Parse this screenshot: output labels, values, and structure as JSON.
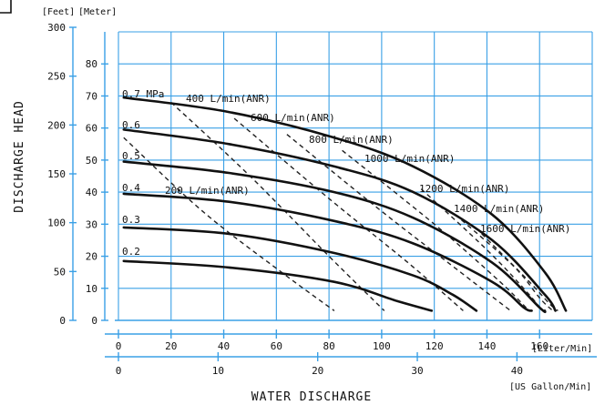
{
  "chart_data": {
    "type": "line",
    "title": "",
    "xlabel": "WATER DISCHARGE",
    "ylabel": "DISCHARGE HEAD",
    "x_unit_primary": "[Liter/Min]",
    "x_unit_secondary": "[US Gallon/Min]",
    "y_unit_feet": "[Feet]",
    "y_unit_meter": "[Meter]",
    "xlim": [
      0,
      180
    ],
    "ylim_meter": [
      0,
      90
    ],
    "grid": true,
    "x_ticks_lpm": [
      "0",
      "20",
      "40",
      "60",
      "80",
      "100",
      "120",
      "140",
      "160"
    ],
    "x_ticks_gpm": [
      "0",
      "10",
      "20",
      "30",
      "40"
    ],
    "y_ticks_meter": [
      "0",
      "10",
      "20",
      "30",
      "40",
      "50",
      "60",
      "70",
      "80"
    ],
    "y_ticks_feet": [
      "0",
      "50",
      "100",
      "150",
      "200",
      "250",
      "300"
    ],
    "series": [
      {
        "name": "0.7 MPa",
        "x": [
          0,
          40,
          80,
          110,
          140,
          160,
          168
        ],
        "y": [
          69.5,
          65,
          57,
          48,
          33,
          15,
          3
        ]
      },
      {
        "name": "0.6",
        "x": [
          0,
          40,
          80,
          110,
          140,
          160,
          164
        ],
        "y": [
          59.5,
          55,
          48,
          40,
          25,
          8,
          3
        ]
      },
      {
        "name": "0.5",
        "x": [
          0,
          40,
          80,
          110,
          140,
          158,
          160
        ],
        "y": [
          49.5,
          46,
          40,
          32,
          18,
          4,
          3
        ]
      },
      {
        "name": "0.4",
        "x": [
          0,
          40,
          80,
          110,
          140,
          152,
          155
        ],
        "y": [
          39.5,
          37,
          31,
          24,
          12,
          4,
          3
        ]
      },
      {
        "name": "0.3",
        "x": [
          0,
          40,
          80,
          110,
          125,
          134
        ],
        "y": [
          29,
          27,
          21,
          14,
          8,
          3
        ]
      },
      {
        "name": "0.2",
        "x": [
          0,
          40,
          80,
          104,
          117
        ],
        "y": [
          18.5,
          16.5,
          12,
          6,
          3
        ]
      }
    ],
    "air_consumption": [
      {
        "name": "200 L/min(ANR)",
        "x": [
          0,
          30,
          60,
          80
        ],
        "y": [
          57,
          34,
          15,
          3
        ]
      },
      {
        "name": "400 L/min(ANR)",
        "x": [
          20,
          50,
          80,
          101
        ],
        "y": [
          68,
          45,
          20,
          3
        ]
      },
      {
        "name": "600 L/min(ANR)",
        "x": [
          44,
          80,
          110,
          131
        ],
        "y": [
          63,
          38,
          18,
          3
        ]
      },
      {
        "name": "800 L/min(ANR)",
        "x": [
          64,
          100,
          130,
          149
        ],
        "y": [
          58,
          34,
          15,
          3
        ]
      },
      {
        "name": "1000 L/min(ANR)",
        "x": [
          85,
          120,
          145,
          156
        ],
        "y": [
          53,
          30,
          12,
          3
        ]
      },
      {
        "name": "1200 L/min(ANR)",
        "x": [
          115,
          140,
          155,
          161
        ],
        "y": [
          41,
          22,
          9,
          3
        ]
      },
      {
        "name": "1400 L/min(ANR)",
        "x": [
          128,
          150,
          160,
          165
        ],
        "y": [
          33,
          17,
          7,
          3
        ]
      },
      {
        "name": "1600 L/min(ANR)",
        "x": [
          138,
          155,
          164,
          167
        ],
        "y": [
          27,
          13,
          5,
          3
        ]
      }
    ]
  }
}
